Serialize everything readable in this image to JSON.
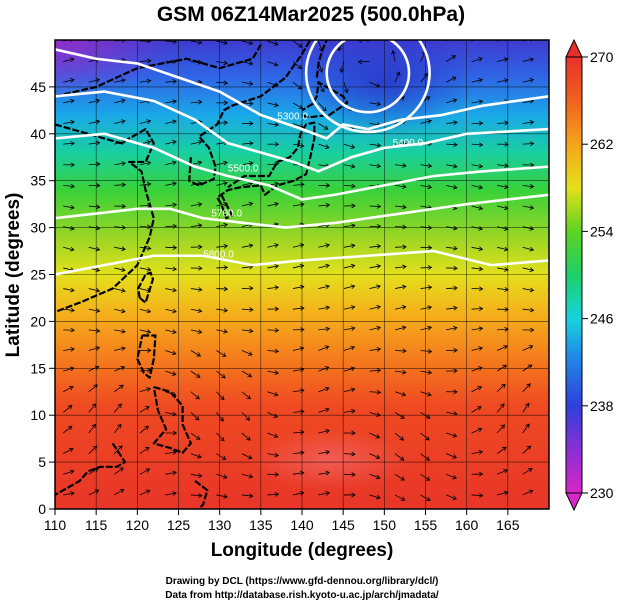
{
  "chart_data": {
    "type": "heatmap",
    "title": "GSM 06Z14Mar2025 (500.0hPa)",
    "xlabel": "Longitude (degrees)",
    "ylabel": "Latitude  (degrees)",
    "xlim": [
      110,
      170
    ],
    "ylim": [
      0,
      50
    ],
    "x_ticks": [
      "110",
      "115",
      "120",
      "125",
      "130",
      "135",
      "140",
      "145",
      "150",
      "155",
      "160",
      "165"
    ],
    "y_ticks": [
      "0",
      "5",
      "10",
      "15",
      "20",
      "25",
      "30",
      "35",
      "40",
      "45"
    ],
    "x_tick_values": [
      110,
      115,
      120,
      125,
      130,
      135,
      140,
      145,
      150,
      155,
      160,
      165
    ],
    "y_tick_values": [
      0,
      5,
      10,
      15,
      20,
      25,
      30,
      35,
      40,
      45
    ],
    "colorbar": {
      "min": 230,
      "max": 270,
      "ticks": [
        "230",
        "238",
        "246",
        "254",
        "262",
        "270"
      ],
      "tick_values": [
        230,
        238,
        246,
        254,
        262,
        270
      ]
    },
    "field_by_latitude": [
      {
        "lat": 0,
        "value": 266
      },
      {
        "lat": 10,
        "value": 266
      },
      {
        "lat": 15,
        "value": 264
      },
      {
        "lat": 20,
        "value": 261
      },
      {
        "lat": 25,
        "value": 258
      },
      {
        "lat": 30,
        "value": 255
      },
      {
        "lat": 35,
        "value": 252
      },
      {
        "lat": 40,
        "value": 248
      },
      {
        "lat": 45,
        "value": 243
      },
      {
        "lat": 50,
        "value": 238
      }
    ],
    "contours": [
      {
        "label": "5300.0"
      },
      {
        "label": "5400.0"
      },
      {
        "label": "5500.0"
      },
      {
        "label": "5700.0"
      },
      {
        "label": "5800.0"
      }
    ],
    "credits": [
      "Drawing by DCL (https://www.gfd-dennou.org/library/dcl/)",
      "Data from http://database.rish.kyoto-u.ac.jp/arch/jmadata/"
    ]
  }
}
